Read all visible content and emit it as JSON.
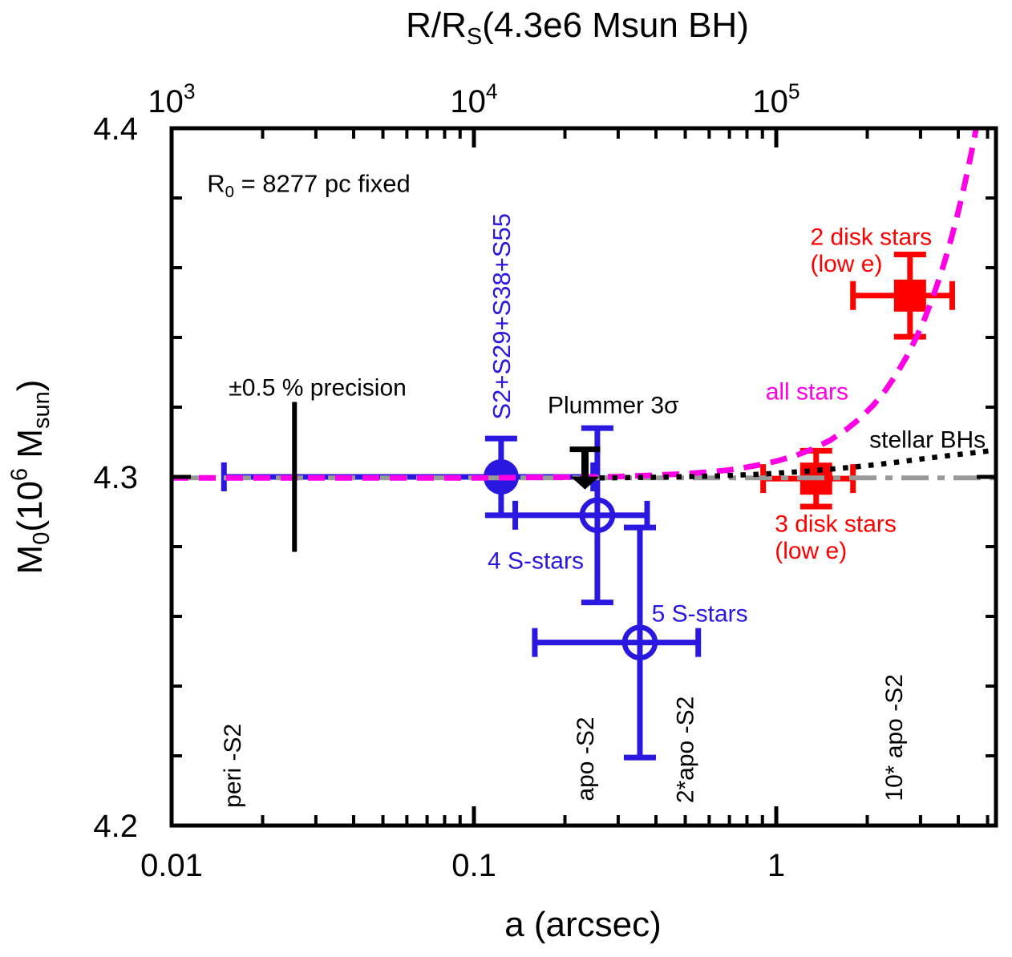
{
  "chart_data": {
    "type": "scatter",
    "title": "",
    "colors": {
      "blue": "#2a17e0",
      "red": "#ff0000",
      "magenta": "#ff00e6",
      "gray": "#999999",
      "black": "#000000"
    },
    "x_axis": {
      "label": "a (arcsec)",
      "scale": "log",
      "min": 0.01,
      "max": 5.33,
      "major_ticks": [
        0.01,
        0.1,
        1
      ],
      "major_labels": [
        "0.01",
        "0.1",
        "1"
      ],
      "minor_ticks": [
        0.02,
        0.03,
        0.04,
        0.05,
        0.06,
        0.07,
        0.08,
        0.09,
        0.2,
        0.3,
        0.4,
        0.5,
        0.6,
        0.7,
        0.8,
        0.9,
        2,
        3,
        4,
        5
      ]
    },
    "y_axis": {
      "label_plain": "M0(10^6 Msun)",
      "label_parts": [
        [
          "M",
          ""
        ],
        [
          "0",
          "sub"
        ],
        [
          "(10",
          ""
        ],
        [
          "6",
          "sup"
        ],
        [
          " M",
          ""
        ],
        [
          "sun",
          "sub"
        ],
        [
          ")",
          ""
        ]
      ],
      "scale": "linear",
      "min": 4.2,
      "max": 4.4,
      "major_ticks": [
        4.2,
        4.3,
        4.4
      ],
      "major_labels": [
        "4.2",
        "4.3",
        "4.4"
      ],
      "minor_ticks": [
        4.22,
        4.24,
        4.26,
        4.28,
        4.32,
        4.34,
        4.36,
        4.38
      ]
    },
    "top_axis": {
      "label_plain": "R/RS(4.3e6 Msun BH)",
      "label_parts": [
        [
          "R/R",
          ""
        ],
        [
          "S",
          "sub"
        ],
        [
          "(4.3e6 Msun BH)",
          ""
        ]
      ],
      "scale": "log",
      "min": 1000,
      "max": 533000,
      "major_ticks": [
        1000,
        10000,
        100000
      ],
      "major_label_parts": [
        [
          [
            "10",
            ""
          ],
          [
            "3",
            "sup"
          ]
        ],
        [
          [
            "10",
            ""
          ],
          [
            "4",
            "sup"
          ]
        ],
        [
          [
            "10",
            ""
          ],
          [
            "5",
            "sup"
          ]
        ]
      ],
      "minor_ticks": [
        2000,
        3000,
        4000,
        5000,
        6000,
        7000,
        8000,
        9000,
        20000,
        30000,
        40000,
        50000,
        60000,
        70000,
        80000,
        90000,
        200000,
        300000,
        400000,
        500000
      ]
    },
    "reference_line": {
      "M": 4.2997,
      "style": "dashdot",
      "color": "gray"
    },
    "curves": [
      {
        "id": "all-stars",
        "label": "all stars",
        "color": "magenta",
        "style": "dashed",
        "points": [
          [
            0.01,
            4.2997
          ],
          [
            0.1,
            4.2997
          ],
          [
            0.2,
            4.2999
          ],
          [
            0.3,
            4.3001
          ],
          [
            0.4,
            4.3005
          ],
          [
            0.5,
            4.3009
          ],
          [
            0.6,
            4.3014
          ],
          [
            0.7,
            4.302
          ],
          [
            0.8,
            4.3028
          ],
          [
            0.9,
            4.3036
          ],
          [
            1.0,
            4.3045
          ],
          [
            1.15,
            4.306
          ],
          [
            1.3,
            4.3078
          ],
          [
            1.5,
            4.3104
          ],
          [
            1.7,
            4.3135
          ],
          [
            1.9,
            4.3169
          ],
          [
            2.1,
            4.3207
          ],
          [
            2.3,
            4.3249
          ],
          [
            2.5,
            4.3295
          ],
          [
            2.7,
            4.3345
          ],
          [
            2.9,
            4.3398
          ],
          [
            3.1,
            4.3455
          ],
          [
            3.3,
            4.3517
          ],
          [
            3.5,
            4.3581
          ],
          [
            3.7,
            4.365
          ],
          [
            3.9,
            4.3723
          ],
          [
            4.1,
            4.3799
          ],
          [
            4.3,
            4.3879
          ],
          [
            4.5,
            4.3963
          ],
          [
            4.7,
            4.405
          ]
        ]
      },
      {
        "id": "stellar-bhs",
        "label": "stellar BHs",
        "color": "black",
        "style": "dotted",
        "points": [
          [
            0.26,
            4.2997
          ],
          [
            0.4,
            4.2999
          ],
          [
            0.6,
            4.3002
          ],
          [
            0.9,
            4.3008
          ],
          [
            1.3,
            4.3017
          ],
          [
            1.8,
            4.3028
          ],
          [
            2.4,
            4.304
          ],
          [
            3.0,
            4.3051
          ],
          [
            3.8,
            4.3062
          ],
          [
            4.6,
            4.307
          ],
          [
            5.33,
            4.3077
          ]
        ]
      }
    ],
    "points": [
      {
        "id": "s2-s29-s38-s55",
        "label": "S2+S29+S38+S55",
        "marker": "circle",
        "filled": true,
        "color": "blue",
        "a": 0.123,
        "M": 4.3,
        "M_err": 0.011,
        "a_lo": 0.0149,
        "a_hi": 0.248
      },
      {
        "id": "4-s-stars",
        "label": "4 S-stars",
        "marker": "circle",
        "filled": false,
        "color": "blue",
        "a": 0.256,
        "M": 4.289,
        "M_err": 0.025,
        "a_lo": 0.137,
        "a_hi": 0.374
      },
      {
        "id": "5-s-stars",
        "label": "5 S-stars",
        "marker": "circle",
        "filled": false,
        "color": "blue",
        "a": 0.354,
        "M": 4.2525,
        "M_err": 0.033,
        "a_lo": 0.159,
        "a_hi": 0.552
      },
      {
        "id": "3-disk-stars",
        "label": "3 disk stars (low e)",
        "marker": "square",
        "filled": true,
        "color": "red",
        "a": 1.355,
        "M": 4.2995,
        "M_err": 0.008,
        "a_lo": 0.905,
        "a_hi": 1.794
      },
      {
        "id": "2-disk-stars",
        "label": "2 disk stars (low e)",
        "marker": "square",
        "filled": true,
        "color": "red",
        "a": 2.77,
        "M": 4.352,
        "M_err": 0.0118,
        "a_lo": 1.794,
        "a_hi": 3.82
      }
    ],
    "upper_limit": {
      "id": "plummer-3sigma",
      "label": "Plummer 3σ",
      "a": 0.233,
      "M_bar": 4.3079,
      "M_tip": 4.2964,
      "color": "black"
    },
    "precision_bar": {
      "a": 0.0255,
      "M": 4.3,
      "err": 0.0215,
      "color": "black"
    },
    "annotations": [
      {
        "id": "r0-note",
        "parts": [
          [
            "R",
            ""
          ],
          [
            "0",
            "sub"
          ],
          [
            " = 8277 pc fixed",
            ""
          ]
        ],
        "color": "black",
        "a": 0.0131,
        "M": 4.3817,
        "anchor": "start",
        "size": 31
      },
      {
        "id": "s2-point-label",
        "text": "S2+S29+S38+S55",
        "color": "blue",
        "a": 0.1315,
        "M": 4.3164,
        "anchor": "start",
        "size": 31,
        "rotate": true
      },
      {
        "id": "plummer-label",
        "text": "Plummer 3σ",
        "color": "black",
        "a": 0.289,
        "M": 4.3183,
        "anchor": "middle",
        "size": 30
      },
      {
        "id": "four-s-stars-label",
        "text": "4 S-stars",
        "color": "blue",
        "a": 0.16,
        "M": 4.2737,
        "anchor": "middle",
        "size": 30
      },
      {
        "id": "five-s-stars-label",
        "text": "5 S-stars",
        "color": "blue",
        "a": 0.5585,
        "M": 4.2585,
        "anchor": "middle",
        "size": 30
      },
      {
        "id": "two-disk-stars-label",
        "lines": [
          "2 disk stars",
          "(low e)"
        ],
        "color": "red",
        "a": 1.296,
        "M": 4.3666,
        "anchor": "start",
        "size": 30
      },
      {
        "id": "all-stars-label",
        "text": "all stars",
        "color": "magenta",
        "a": 1.264,
        "M": 4.3222,
        "anchor": "middle",
        "size": 30
      },
      {
        "id": "stellar-bhs-label",
        "text": "stellar BHs",
        "color": "black",
        "a": 3.165,
        "M": 4.3084,
        "anchor": "middle",
        "size": 30
      },
      {
        "id": "three-disk-stars-label",
        "lines": [
          "3 disk stars",
          "(low e)"
        ],
        "color": "red",
        "a": 0.989,
        "M": 4.2843,
        "anchor": "start",
        "size": 30
      },
      {
        "id": "precision-label",
        "text": "±0.5 % precision",
        "color": "black",
        "a": 0.0304,
        "M": 4.3233,
        "anchor": "middle",
        "size": 30
      },
      {
        "id": "peri-s2-label",
        "text": "peri -S2",
        "color": "black",
        "a": 0.0169,
        "M": 4.2051,
        "anchor": "start",
        "size": 30,
        "rotate": true
      },
      {
        "id": "apo-s2-label",
        "text": "apo -S2",
        "color": "black",
        "a": 0.2483,
        "M": 4.207,
        "anchor": "start",
        "size": 30,
        "rotate": true
      },
      {
        "id": "two-apo-s2-label",
        "text": "2*apo -S2",
        "color": "black",
        "a": 0.532,
        "M": 4.2064,
        "anchor": "start",
        "size": 30,
        "rotate": true
      },
      {
        "id": "ten-apo-s2-label",
        "text": "10* apo -S2",
        "color": "black",
        "a": 2.605,
        "M": 4.207,
        "anchor": "start",
        "size": 30,
        "rotate": true
      }
    ]
  }
}
